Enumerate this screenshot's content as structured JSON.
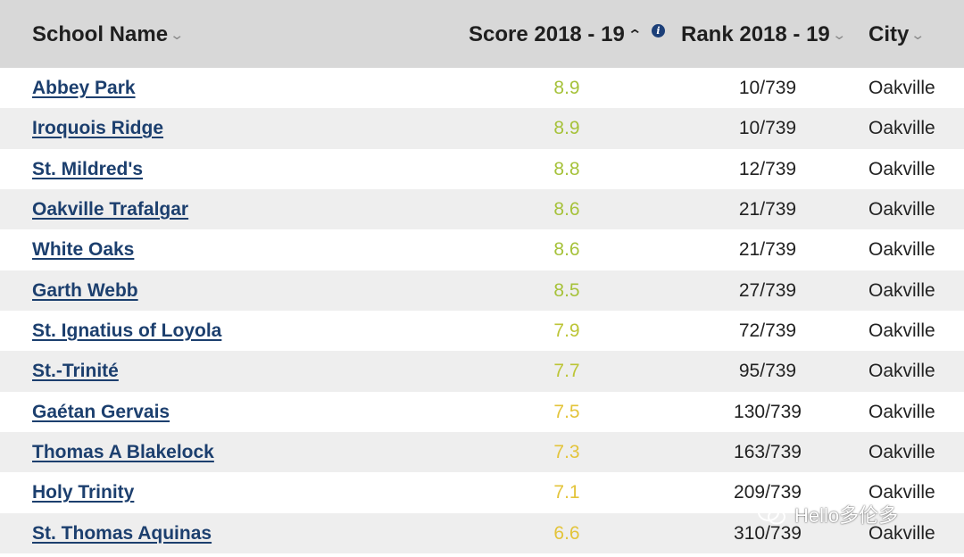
{
  "header": {
    "school_name": "School Name",
    "score": "Score 2018 - 19",
    "rank": "Rank 2018 - 19",
    "city": "City",
    "info_glyph": "i",
    "sort_up_glyph": "^",
    "chevron_glyph": "v"
  },
  "colors": {
    "header_bg": "#d8d8d8",
    "stripe_bg": "#eeeeee",
    "link": "#1c3f6e",
    "score_green": "#a6c23a",
    "score_olive": "#bcc536",
    "score_yellow": "#e3c43a"
  },
  "rows": [
    {
      "name": "Abbey Park",
      "score": "8.9",
      "rank": "10/739",
      "city": "Oakville",
      "score_color": "#a6c23a"
    },
    {
      "name": "Iroquois Ridge",
      "score": "8.9",
      "rank": "10/739",
      "city": "Oakville",
      "score_color": "#a6c23a"
    },
    {
      "name": "St. Mildred's",
      "score": "8.8",
      "rank": "12/739",
      "city": "Oakville",
      "score_color": "#a6c23a"
    },
    {
      "name": "Oakville Trafalgar",
      "score": "8.6",
      "rank": "21/739",
      "city": "Oakville",
      "score_color": "#a6c23a"
    },
    {
      "name": "White Oaks",
      "score": "8.6",
      "rank": "21/739",
      "city": "Oakville",
      "score_color": "#a6c23a"
    },
    {
      "name": "Garth Webb",
      "score": "8.5",
      "rank": "27/739",
      "city": "Oakville",
      "score_color": "#a6c23a"
    },
    {
      "name": "St. Ignatius of Loyola",
      "score": "7.9",
      "rank": "72/739",
      "city": "Oakville",
      "score_color": "#bcc536"
    },
    {
      "name": "St.-Trinité",
      "score": "7.7",
      "rank": "95/739",
      "city": "Oakville",
      "score_color": "#bcc536"
    },
    {
      "name": "Gaétan Gervais",
      "score": "7.5",
      "rank": "130/739",
      "city": "Oakville",
      "score_color": "#e3c43a"
    },
    {
      "name": "Thomas A Blakelock",
      "score": "7.3",
      "rank": "163/739",
      "city": "Oakville",
      "score_color": "#e3c43a"
    },
    {
      "name": "Holy Trinity",
      "score": "7.1",
      "rank": "209/739",
      "city": "Oakville",
      "score_color": "#e3c43a"
    },
    {
      "name": "St. Thomas Aquinas",
      "score": "6.6",
      "rank": "310/739",
      "city": "Oakville",
      "score_color": "#e3c43a"
    }
  ],
  "watermark": {
    "text": "Hello多伦多",
    "icon": "wechat-icon"
  }
}
